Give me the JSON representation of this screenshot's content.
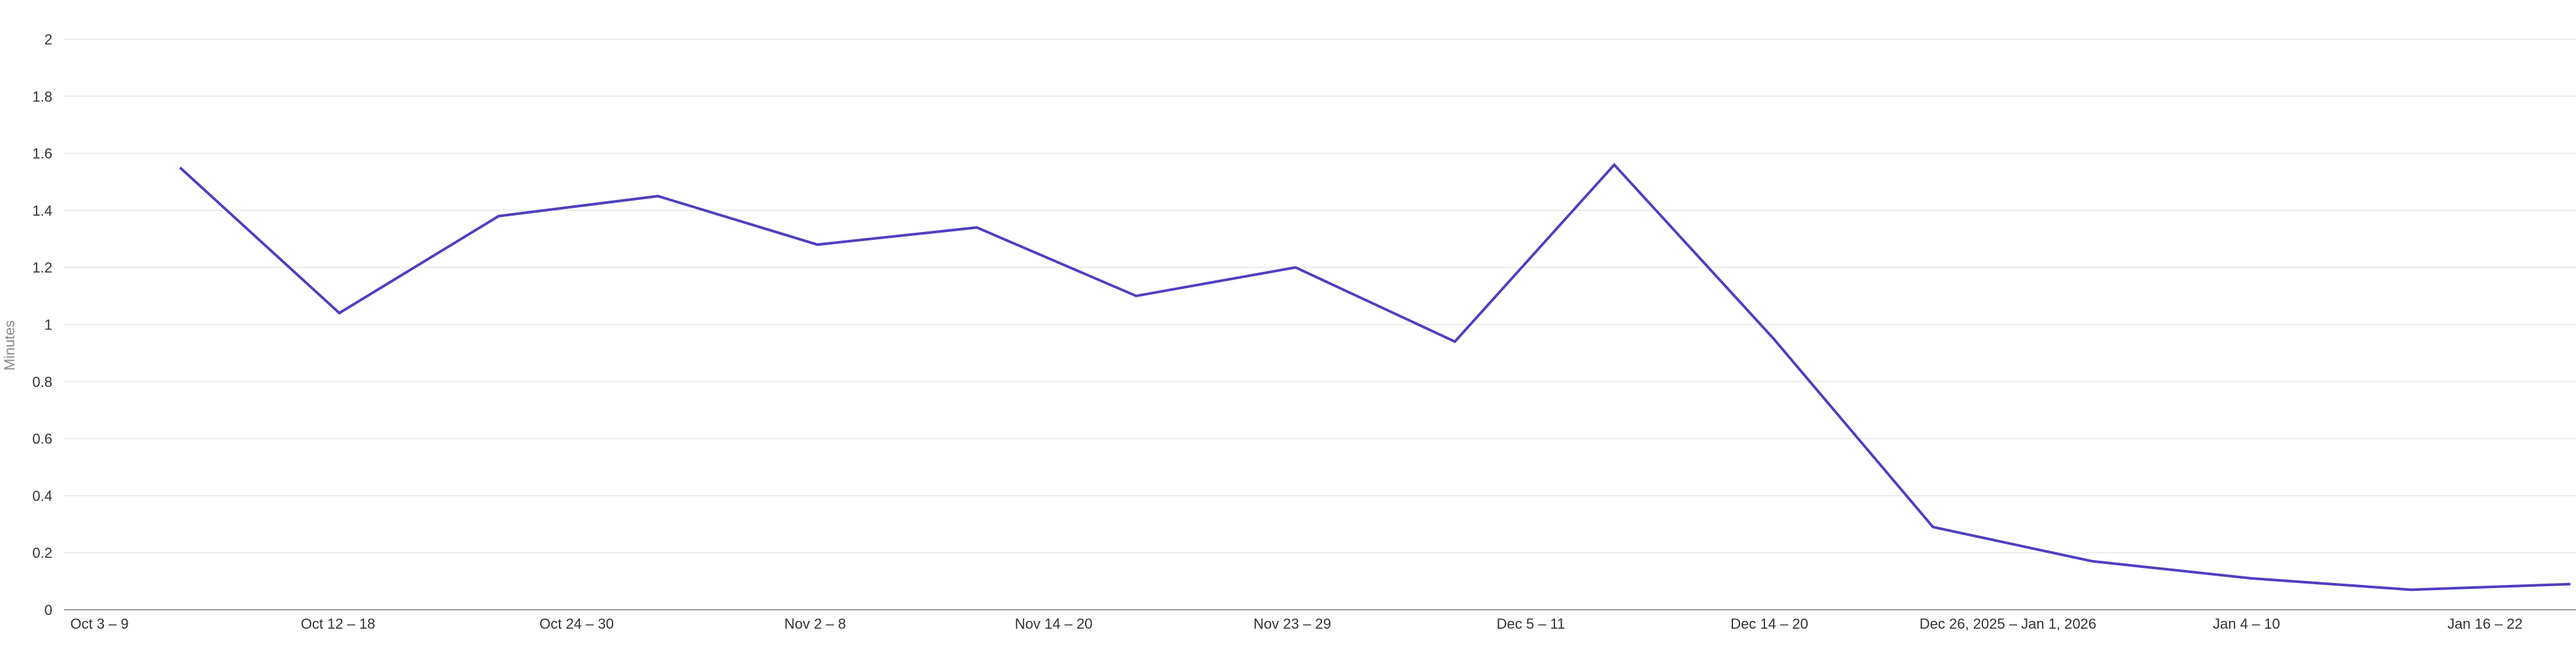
{
  "chart_data": {
    "type": "line",
    "ylabel": "Minutes",
    "ylim": [
      0,
      2
    ],
    "yticks": [
      "0",
      "0.2",
      "0.4",
      "0.6",
      "0.8",
      "1",
      "1.2",
      "1.4",
      "1.6",
      "1.8",
      "2"
    ],
    "xticks": [
      "Oct 3 – 9",
      "Oct 12 – 18",
      "Oct 24 – 30",
      "Nov 2 – 8",
      "Nov 14 – 20",
      "Nov 23 – 29",
      "Dec 5 – 11",
      "Dec 14 – 20",
      "Dec 26, 2025 – Jan 1, 2026",
      "Jan 4 – 10",
      "Jan 16 – 22"
    ],
    "grid": true,
    "colors": {
      "series": "#4f3fc0",
      "grid": "#ebebeb",
      "axis": "#9a9a9a"
    },
    "series": [
      {
        "values": [
          1.55,
          1.04,
          1.38,
          1.45,
          1.28,
          1.34,
          1.1,
          1.2,
          0.94,
          1.56,
          0.95,
          0.29,
          0.17,
          0.11,
          0.07,
          0.09
        ]
      }
    ]
  }
}
